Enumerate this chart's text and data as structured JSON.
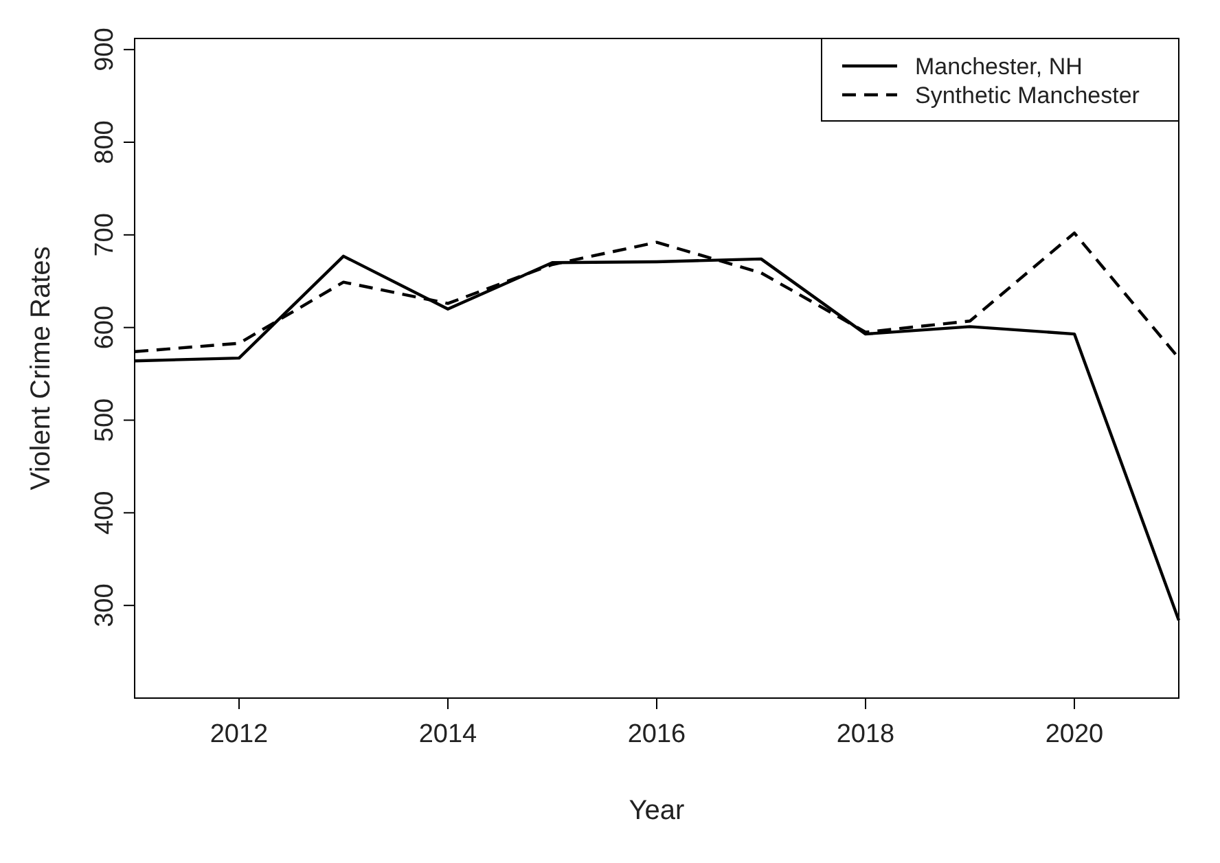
{
  "chart_data": {
    "type": "line",
    "xlabel": "Year",
    "ylabel": "Violent Crime Rates",
    "x": [
      2011,
      2012,
      2013,
      2014,
      2015,
      2016,
      2017,
      2018,
      2019,
      2020,
      2021
    ],
    "series": [
      {
        "name": "Manchester, NH",
        "color": "#000000",
        "line_style": "solid",
        "values": [
          564,
          567,
          677,
          620,
          670,
          671,
          674,
          593,
          601,
          593,
          284
        ]
      },
      {
        "name": "Synthetic Manchester",
        "color": "#000000",
        "line_style": "dashed",
        "values": [
          574,
          583,
          649,
          626,
          668,
          692,
          659,
          595,
          607,
          702,
          567
        ]
      }
    ],
    "xlim": [
      2011,
      2021
    ],
    "xticks": [
      2012,
      2014,
      2016,
      2018,
      2020
    ],
    "ylim": [
      200,
      912
    ],
    "yticks": [
      300,
      400,
      500,
      600,
      700,
      800,
      900
    ],
    "grid": false,
    "legend": "top right",
    "marker": "none"
  }
}
